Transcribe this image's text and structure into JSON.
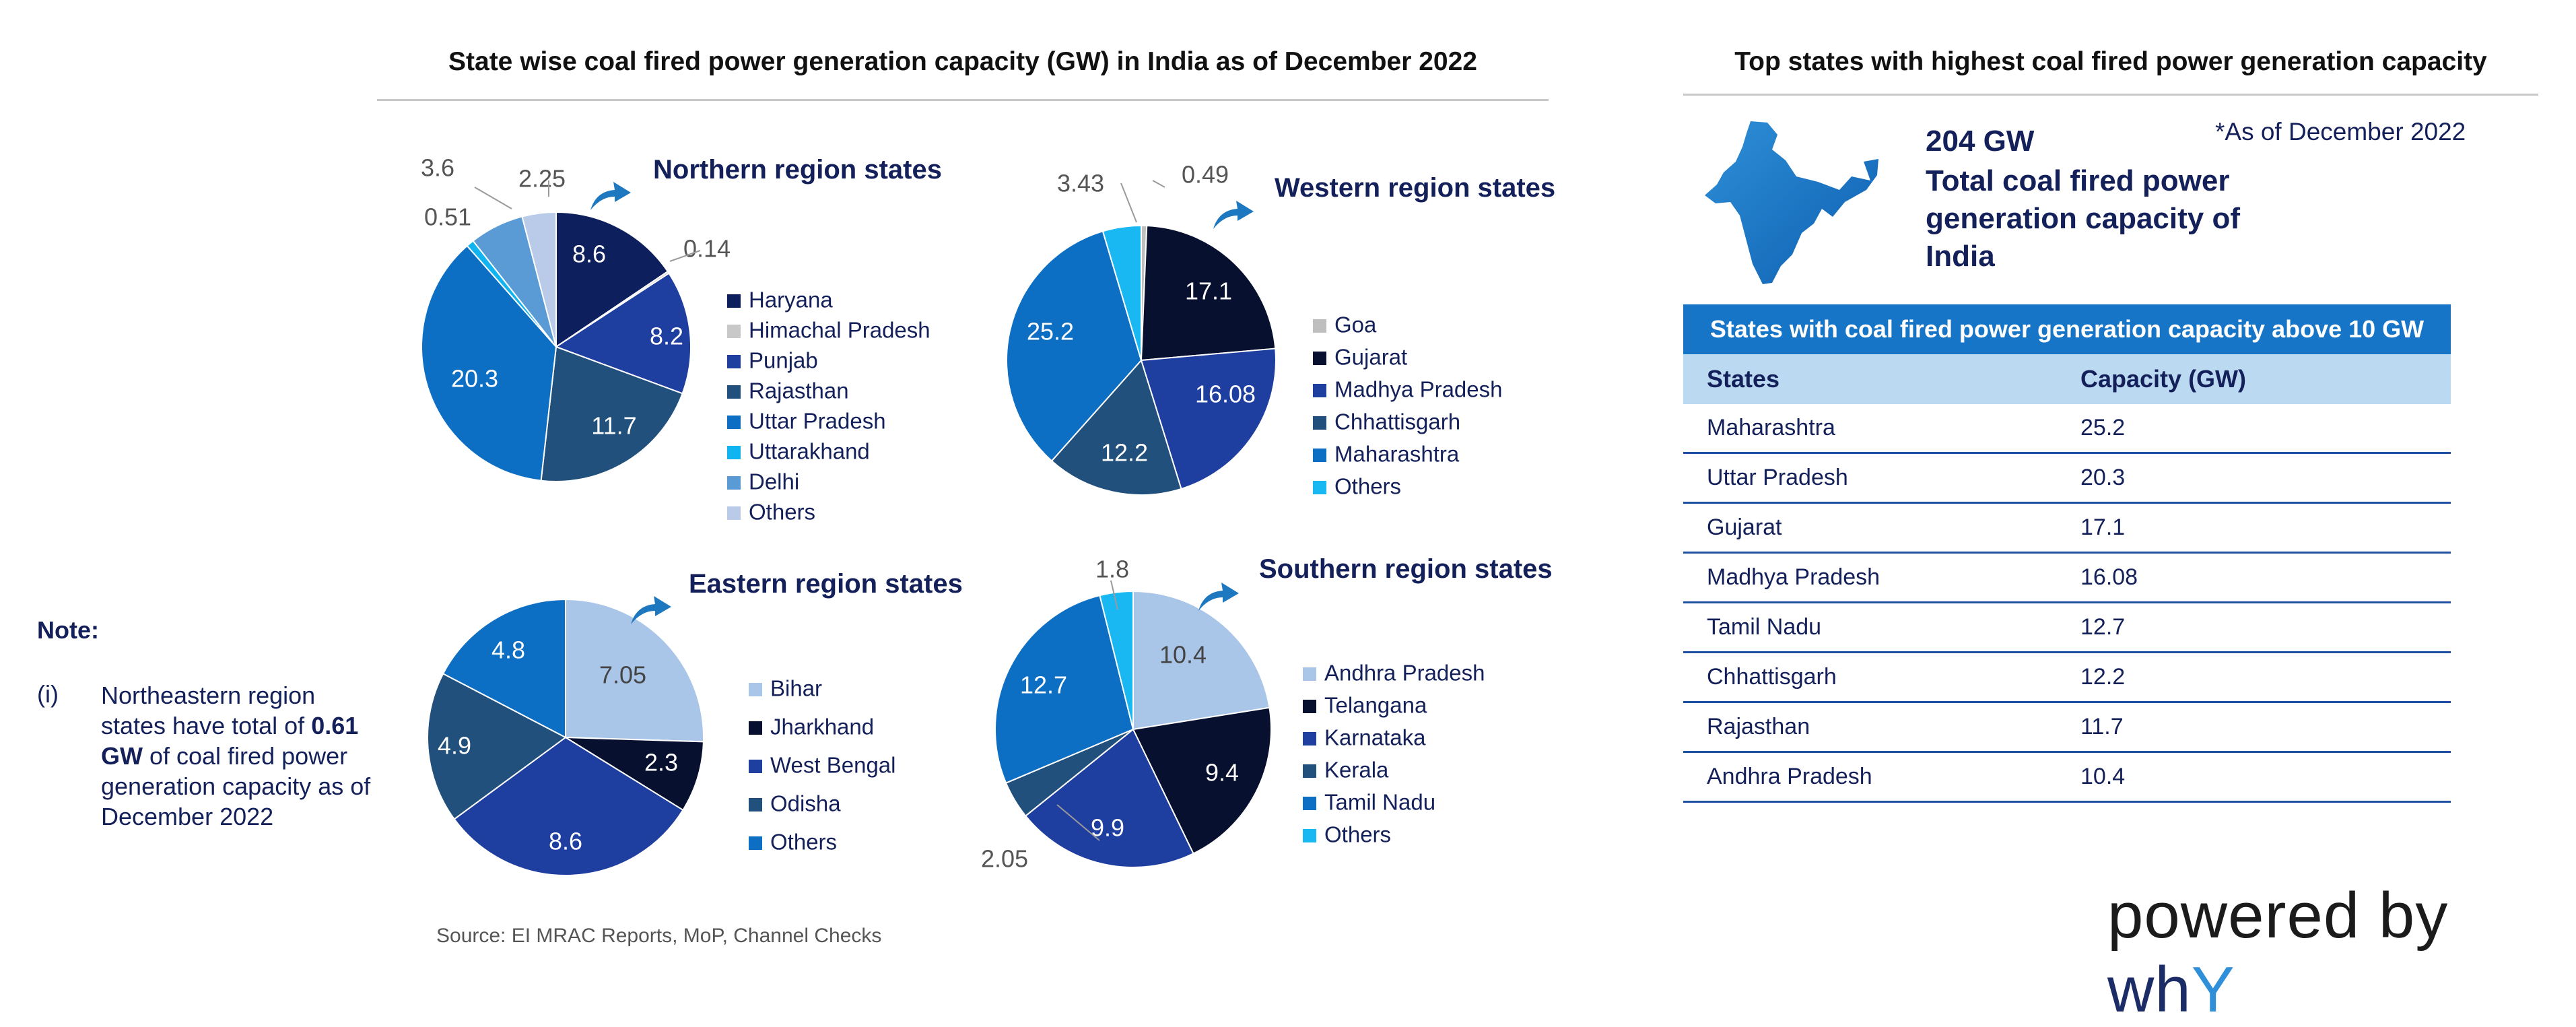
{
  "main_title": "State wise coal fired power generation capacity (GW) in India as of December 2022",
  "side_title": "Top states with highest coal fired power generation capacity",
  "chart_data": [
    {
      "type": "pie",
      "title": "Northern region states",
      "labels": [
        "Haryana",
        "Himachal Pradesh",
        "Punjab",
        "Rajasthan",
        "Uttar Pradesh",
        "Uttarakhand",
        "Delhi",
        "Others"
      ],
      "values": [
        8.6,
        0.14,
        8.2,
        11.7,
        20.3,
        0.51,
        3.6,
        2.25
      ],
      "value_labels": [
        "8.6",
        "0.14",
        "8.2",
        "11.7",
        "20.3",
        "0.51",
        "3.6",
        "2.25"
      ],
      "colors": [
        "#0d1f5c",
        "#c8c8c8",
        "#1e3ea0",
        "#21507c",
        "#0d6fc4",
        "#0fb4f0",
        "#5b9bd5",
        "#b9cbe9"
      ],
      "label_colors": [
        "#ffffff",
        "#555555",
        "#ffffff",
        "#ffffff",
        "#ffffff",
        "#555555",
        "#555555",
        "#555555"
      ]
    },
    {
      "type": "pie",
      "title": "Western region states",
      "labels": [
        "Goa",
        "Gujarat",
        "Madhya Pradesh",
        "Chhattisgarh",
        "Maharashtra",
        "Others"
      ],
      "values": [
        0.49,
        17.1,
        16.08,
        12.2,
        25.2,
        3.43
      ],
      "value_labels": [
        "0.49",
        "17.1",
        "16.08",
        "12.2",
        "25.2",
        "3.43"
      ],
      "colors": [
        "#bfbfbf",
        "#07102e",
        "#1e3ea0",
        "#21507c",
        "#0d6fc4",
        "#1ab8f2"
      ],
      "label_colors": [
        "#555555",
        "#ffffff",
        "#ffffff",
        "#ffffff",
        "#ffffff",
        "#555555"
      ]
    },
    {
      "type": "pie",
      "title": "Eastern region states",
      "labels": [
        "Bihar",
        "Jharkhand",
        "West Bengal",
        "Odisha",
        "Others"
      ],
      "values": [
        7.05,
        2.3,
        8.6,
        4.9,
        4.8
      ],
      "value_labels": [
        "7.05",
        "2.3",
        "8.6",
        "4.9",
        "4.8"
      ],
      "colors": [
        "#a9c6e8",
        "#07102e",
        "#1e3ea0",
        "#21507c",
        "#0d6fc4"
      ],
      "label_colors": [
        "#444444",
        "#ffffff",
        "#ffffff",
        "#ffffff",
        "#ffffff"
      ]
    },
    {
      "type": "pie",
      "title": "Southern region states",
      "labels": [
        "Andhra Pradesh",
        "Telangana",
        "Karnataka",
        "Kerala",
        "Tamil Nadu",
        "Others"
      ],
      "values": [
        10.4,
        9.4,
        9.9,
        2.05,
        12.7,
        1.8
      ],
      "value_labels": [
        "10.4",
        "9.4",
        "9.9",
        "2.05",
        "12.7",
        "1.8"
      ],
      "colors": [
        "#a9c6e8",
        "#07102e",
        "#1e3ea0",
        "#21507c",
        "#0d6fc4",
        "#1ab8f2"
      ],
      "label_colors": [
        "#444444",
        "#ffffff",
        "#ffffff",
        "#555555",
        "#ffffff",
        "#555555"
      ]
    }
  ],
  "note": {
    "heading": "Note:",
    "index": "(i)",
    "text_before": "Northeastern region states have total of ",
    "highlight": "0.61 GW",
    "text_after": " of coal fired power generation capacity as of December 2022"
  },
  "source": "Source: EI MRAC Reports, MoP, Channel Checks",
  "summary": {
    "total": "204 GW",
    "description": "Total coal fired power generation capacity of India",
    "as_of": "*As of December 2022"
  },
  "table": {
    "heading": "States with coal fired power generation capacity above 10 GW",
    "columns": [
      "States",
      "Capacity (GW)"
    ],
    "rows": [
      {
        "state": "Maharashtra",
        "capacity": "25.2"
      },
      {
        "state": "Uttar Pradesh",
        "capacity": "20.3"
      },
      {
        "state": "Gujarat",
        "capacity": "17.1"
      },
      {
        "state": "Madhya Pradesh",
        "capacity": "16.08"
      },
      {
        "state": "Tamil Nadu",
        "capacity": "12.7"
      },
      {
        "state": "Chhattisgarh",
        "capacity": "12.2"
      },
      {
        "state": "Rajasthan",
        "capacity": "11.7"
      },
      {
        "state": "Andhra Pradesh",
        "capacity": "10.4"
      }
    ]
  },
  "branding": {
    "prefix": "powered by ",
    "brand_a": "wh",
    "brand_b": "Y"
  },
  "icons": {
    "arrow": "curved-arrow-icon",
    "map": "india-map-icon"
  },
  "colors": {
    "accent": "#1775c8",
    "navy": "#14205a",
    "table_subhead": "#bcd9f2"
  }
}
